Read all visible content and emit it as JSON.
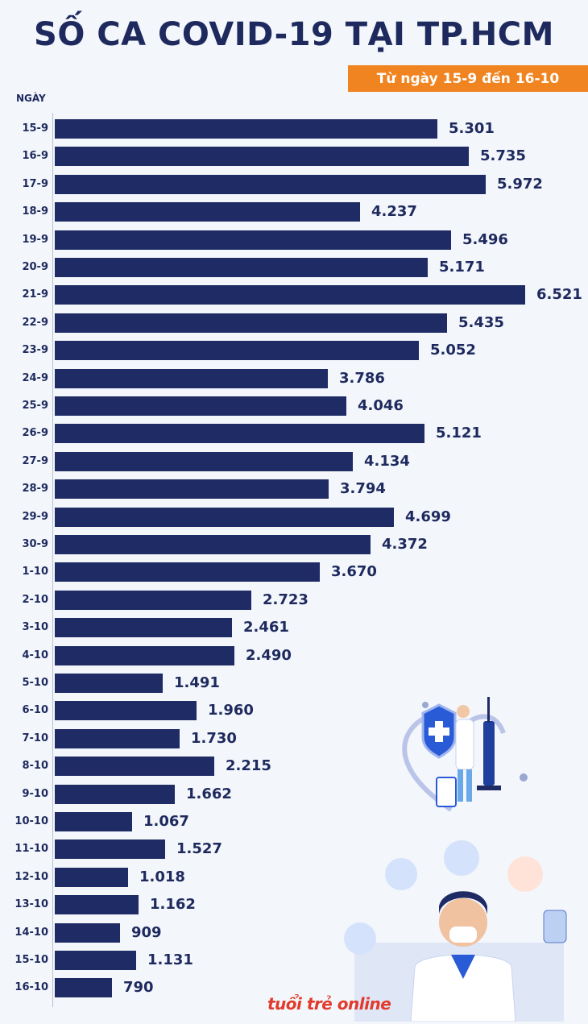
{
  "title": "SỐ CA COVID-19 TẠI TP.HCM",
  "subtitle": "Từ ngày 15-9 đến 16-10",
  "logo_text": "tuổi trẻ online",
  "colors": {
    "bar": "#1f2b64",
    "accent": "#f08421",
    "text": "#1e2a5e",
    "background": "#f3f6fb"
  },
  "chart_data": {
    "type": "bar",
    "orientation": "horizontal",
    "xlabel": "NGÀY",
    "categories": [
      "15-9",
      "16-9",
      "17-9",
      "18-9",
      "19-9",
      "20-9",
      "21-9",
      "22-9",
      "23-9",
      "24-9",
      "25-9",
      "26-9",
      "27-9",
      "28-9",
      "29-9",
      "30-9",
      "1-10",
      "2-10",
      "3-10",
      "4-10",
      "5-10",
      "6-10",
      "7-10",
      "8-10",
      "9-10",
      "10-10",
      "11-10",
      "12-10",
      "13-10",
      "14-10",
      "15-10",
      "16-10"
    ],
    "values": [
      5301,
      5735,
      5972,
      4237,
      5496,
      5171,
      6521,
      5435,
      5052,
      3786,
      4046,
      5121,
      4134,
      3794,
      4699,
      4372,
      3670,
      2723,
      2461,
      2490,
      1491,
      1960,
      1730,
      2215,
      1662,
      1067,
      1527,
      1018,
      1162,
      909,
      1131,
      790
    ],
    "value_labels": [
      "5.301",
      "5.735",
      "5.972",
      "4.237",
      "5.496",
      "5.171",
      "6.521",
      "5.435",
      "5.052",
      "3.786",
      "4.046",
      "5.121",
      "4.134",
      "3.794",
      "4.699",
      "4.372",
      "3.670",
      "2.723",
      "2.461",
      "2.490",
      "1.491",
      "1.960",
      "1.730",
      "2.215",
      "1.662",
      "1.067",
      "1.527",
      "1.018",
      "1.162",
      "909",
      "1.131",
      "790"
    ],
    "xlim": [
      0,
      6521
    ],
    "grid": false,
    "legend": "none"
  }
}
